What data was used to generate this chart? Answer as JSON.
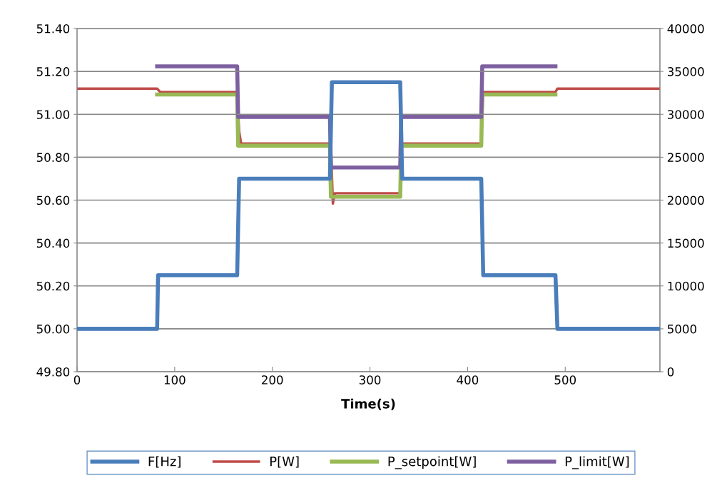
{
  "chart_data": {
    "type": "line",
    "xlabel": "Time(s)",
    "xlim": [
      0,
      597
    ],
    "xticks": [
      0,
      100,
      200,
      300,
      400,
      500
    ],
    "ylim": [
      49.8,
      51.4
    ],
    "yticks": [
      {
        "value": 49.8,
        "label": "49.80"
      },
      {
        "value": 50.0,
        "label": "50.00"
      },
      {
        "value": 50.2,
        "label": "50.20"
      },
      {
        "value": 50.4,
        "label": "50.40"
      },
      {
        "value": 50.6,
        "label": "50.60"
      },
      {
        "value": 50.8,
        "label": "50.80"
      },
      {
        "value": 51.0,
        "label": "51.00"
      },
      {
        "value": 51.2,
        "label": "51.20"
      },
      {
        "value": 51.4,
        "label": "51.40"
      }
    ],
    "y2lim": [
      0,
      40000
    ],
    "y2ticks": [
      0,
      5000,
      10000,
      15000,
      20000,
      25000,
      30000,
      35000,
      40000
    ],
    "grid": "y",
    "legend": "bottom",
    "marker": "none",
    "line_style": "solid",
    "series": [
      {
        "name": "F[Hz]",
        "color": "#4a7ebb",
        "x": [
          0,
          82,
          83,
          164,
          166,
          259,
          261,
          331,
          333,
          414,
          416,
          490,
          492,
          597
        ],
        "values": [
          50.0,
          50.0,
          50.25,
          50.25,
          50.7,
          50.7,
          51.15,
          51.15,
          50.7,
          50.7,
          50.25,
          50.25,
          50.0,
          50.0
        ]
      },
      {
        "name": "P[W]",
        "color": "#be4b48",
        "axis": "y2",
        "x": [
          0,
          82,
          85,
          164,
          166,
          168,
          260,
          262,
          264,
          331,
          333,
          414,
          416,
          490,
          492,
          597
        ],
        "values": [
          33000,
          33000,
          32600,
          32600,
          28000,
          26600,
          26600,
          19600,
          20800,
          20800,
          26600,
          26600,
          32600,
          32600,
          33000,
          33000
        ]
      },
      {
        "name": "P_setpoint[W]",
        "color": "#98b954",
        "axis": "y2",
        "x": [
          82,
          164,
          165,
          259,
          260,
          331,
          332,
          414,
          415,
          490
        ],
        "values": [
          32300,
          32300,
          26350,
          26350,
          20400,
          20400,
          26350,
          26350,
          32300,
          32300
        ]
      },
      {
        "name": "P_limit[W]",
        "color": "#7d60a0",
        "axis": "y2",
        "x": [
          82,
          164,
          165,
          259,
          260,
          331,
          332,
          414,
          415,
          490
        ],
        "values": [
          35600,
          35600,
          29700,
          29700,
          23800,
          23800,
          29700,
          29700,
          35600,
          35600
        ]
      }
    ]
  }
}
